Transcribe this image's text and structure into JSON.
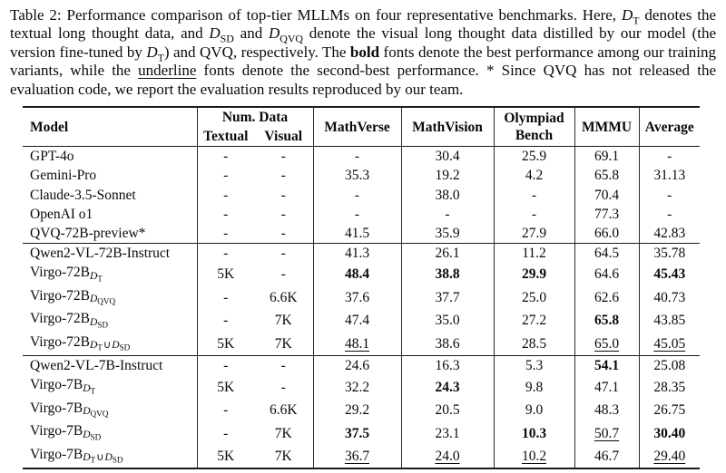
{
  "caption": {
    "segments": [
      {
        "text": "Table 2: Performance comparison of top-tier MLLMs on four representative benchmarks. Here, "
      },
      {
        "math": [
          [
            "D",
            "T"
          ]
        ]
      },
      {
        "text": " denotes the textual long thought data, and "
      },
      {
        "math": [
          [
            "D",
            "SD"
          ]
        ]
      },
      {
        "text": " and "
      },
      {
        "math": [
          [
            "D",
            "QVQ"
          ]
        ]
      },
      {
        "text": " denote the visual long thought data distilled by our model (the version fine-tuned by "
      },
      {
        "math": [
          [
            "D",
            "T"
          ]
        ]
      },
      {
        "text": ") and QVQ, respectively. The "
      },
      {
        "bold": "bold"
      },
      {
        "text": " fonts denote the best performance among our training variants, while the "
      },
      {
        "underline": "underline"
      },
      {
        "text": " fonts denote the second-best performance. * Since QVQ has not released the evaluation code, we report the evaluation results reproduced by our team."
      }
    ]
  },
  "table": {
    "header": {
      "model": "Model",
      "num_data": "Num. Data",
      "textual": "Textual",
      "visual": "Visual",
      "mathverse": "MathVerse",
      "mathvision": "MathVision",
      "olympiad_line1": "Olympiad",
      "olympiad_line2": "Bench",
      "mmmu": "MMMU",
      "average": "Average"
    },
    "sections": [
      {
        "rows": [
          {
            "model": {
              "name": "GPT-4o"
            },
            "textual": "-",
            "visual": "-",
            "metrics": [
              [
                "-",
                ""
              ],
              [
                "30.4",
                ""
              ],
              [
                "25.9",
                ""
              ],
              [
                "69.1",
                ""
              ],
              [
                "-",
                ""
              ]
            ]
          },
          {
            "model": {
              "name": "Gemini-Pro"
            },
            "textual": "-",
            "visual": "-",
            "metrics": [
              [
                "35.3",
                ""
              ],
              [
                "19.2",
                ""
              ],
              [
                "4.2",
                ""
              ],
              [
                "65.8",
                ""
              ],
              [
                "31.13",
                ""
              ]
            ]
          },
          {
            "model": {
              "name": "Claude-3.5-Sonnet"
            },
            "textual": "-",
            "visual": "-",
            "metrics": [
              [
                "-",
                ""
              ],
              [
                "38.0",
                ""
              ],
              [
                "-",
                ""
              ],
              [
                "70.4",
                ""
              ],
              [
                "-",
                ""
              ]
            ]
          },
          {
            "model": {
              "name": "OpenAI o1"
            },
            "textual": "-",
            "visual": "-",
            "metrics": [
              [
                "-",
                ""
              ],
              [
                "-",
                ""
              ],
              [
                "-",
                ""
              ],
              [
                "77.3",
                ""
              ],
              [
                "-",
                ""
              ]
            ]
          },
          {
            "model": {
              "name": "QVQ-72B-preview*"
            },
            "textual": "-",
            "visual": "-",
            "metrics": [
              [
                "41.5",
                ""
              ],
              [
                "35.9",
                ""
              ],
              [
                "27.9",
                ""
              ],
              [
                "66.0",
                ""
              ],
              [
                "42.83",
                ""
              ]
            ]
          }
        ]
      },
      {
        "rows": [
          {
            "model": {
              "name": "Qwen2-VL-72B-Instruct"
            },
            "textual": "-",
            "visual": "-",
            "metrics": [
              [
                "41.3",
                ""
              ],
              [
                "26.1",
                ""
              ],
              [
                "11.2",
                ""
              ],
              [
                "64.5",
                ""
              ],
              [
                "35.78",
                ""
              ]
            ]
          },
          {
            "model": {
              "name": "Virgo-72B",
              "sub": [
                [
                  "D",
                  "T"
                ]
              ]
            },
            "textual": "5K",
            "visual": "-",
            "metrics": [
              [
                "48.4",
                "bold"
              ],
              [
                "38.8",
                "bold"
              ],
              [
                "29.9",
                "bold"
              ],
              [
                "64.6",
                ""
              ],
              [
                "45.43",
                "bold"
              ]
            ]
          },
          {
            "model": {
              "name": "Virgo-72B",
              "sub": [
                [
                  "D",
                  "QVQ"
                ]
              ]
            },
            "textual": "-",
            "visual": "6.6K",
            "metrics": [
              [
                "37.6",
                ""
              ],
              [
                "37.7",
                ""
              ],
              [
                "25.0",
                ""
              ],
              [
                "62.6",
                ""
              ],
              [
                "40.73",
                ""
              ]
            ]
          },
          {
            "model": {
              "name": "Virgo-72B",
              "sub": [
                [
                  "D",
                  "SD"
                ]
              ]
            },
            "textual": "-",
            "visual": "7K",
            "metrics": [
              [
                "47.4",
                ""
              ],
              [
                "35.0",
                ""
              ],
              [
                "27.2",
                ""
              ],
              [
                "65.8",
                "bold"
              ],
              [
                "43.85",
                ""
              ]
            ]
          },
          {
            "model": {
              "name": "Virgo-72B",
              "sub": [
                [
                  "D",
                  "T"
                ],
                "∪",
                [
                  "D",
                  "SD"
                ]
              ]
            },
            "textual": "5K",
            "visual": "7K",
            "metrics": [
              [
                "48.1",
                "underline"
              ],
              [
                "38.6",
                ""
              ],
              [
                "28.5",
                ""
              ],
              [
                "65.0",
                "underline"
              ],
              [
                "45.05",
                "underline"
              ]
            ]
          }
        ]
      },
      {
        "rows": [
          {
            "model": {
              "name": "Qwen2-VL-7B-Instruct"
            },
            "textual": "-",
            "visual": "-",
            "metrics": [
              [
                "24.6",
                ""
              ],
              [
                "16.3",
                ""
              ],
              [
                "5.3",
                ""
              ],
              [
                "54.1",
                "bold"
              ],
              [
                "25.08",
                ""
              ]
            ]
          },
          {
            "model": {
              "name": "Virgo-7B",
              "sub": [
                [
                  "D",
                  "T"
                ]
              ]
            },
            "textual": "5K",
            "visual": "-",
            "metrics": [
              [
                "32.2",
                ""
              ],
              [
                "24.3",
                "bold"
              ],
              [
                "9.8",
                ""
              ],
              [
                "47.1",
                ""
              ],
              [
                "28.35",
                ""
              ]
            ]
          },
          {
            "model": {
              "name": "Virgo-7B",
              "sub": [
                [
                  "D",
                  "QVQ"
                ]
              ]
            },
            "textual": "-",
            "visual": "6.6K",
            "metrics": [
              [
                "29.2",
                ""
              ],
              [
                "20.5",
                ""
              ],
              [
                "9.0",
                ""
              ],
              [
                "48.3",
                ""
              ],
              [
                "26.75",
                ""
              ]
            ]
          },
          {
            "model": {
              "name": "Virgo-7B",
              "sub": [
                [
                  "D",
                  "SD"
                ]
              ]
            },
            "textual": "-",
            "visual": "7K",
            "metrics": [
              [
                "37.5",
                "bold"
              ],
              [
                "23.1",
                ""
              ],
              [
                "10.3",
                "bold"
              ],
              [
                "50.7",
                "underline"
              ],
              [
                "30.40",
                "bold"
              ]
            ]
          },
          {
            "model": {
              "name": "Virgo-7B",
              "sub": [
                [
                  "D",
                  "T"
                ],
                "∪",
                [
                  "D",
                  "SD"
                ]
              ]
            },
            "textual": "5K",
            "visual": "7K",
            "metrics": [
              [
                "36.7",
                "underline"
              ],
              [
                "24.0",
                "underline"
              ],
              [
                "10.2",
                "underline"
              ],
              [
                "46.7",
                ""
              ],
              [
                "29.40",
                "underline"
              ]
            ]
          }
        ]
      }
    ]
  }
}
